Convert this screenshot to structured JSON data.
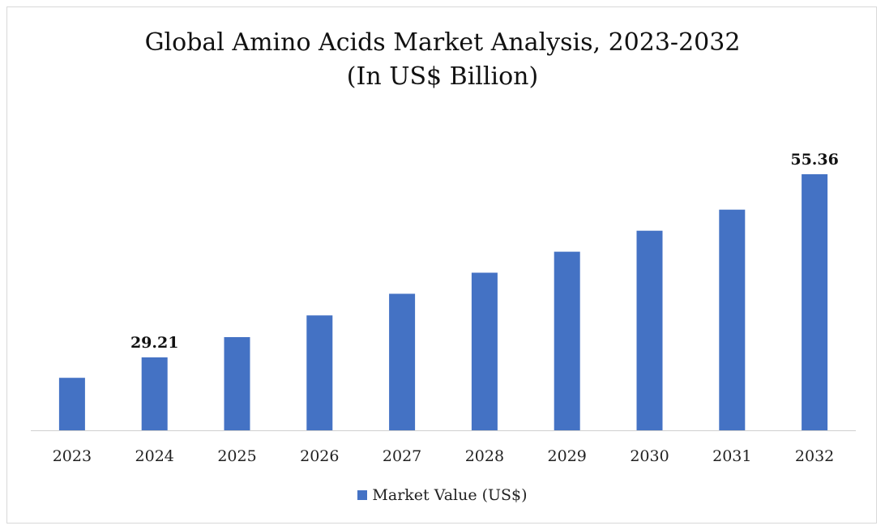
{
  "chart_data": {
    "type": "bar",
    "title": "Global Amino Acids Market Analysis, 2023-2032",
    "subtitle": "(In US$ Billion)",
    "categories": [
      "2023",
      "2024",
      "2025",
      "2026",
      "2027",
      "2028",
      "2029",
      "2030",
      "2031",
      "2032"
    ],
    "series": [
      {
        "name": "Market Value (US$)",
        "values": [
          26.3,
          29.21,
          32.1,
          35.2,
          38.3,
          41.3,
          44.3,
          47.3,
          50.3,
          55.36
        ],
        "color": "#4472c4"
      }
    ],
    "data_labels": [
      {
        "category": "2024",
        "text": "29.21"
      },
      {
        "category": "2032",
        "text": "55.36"
      }
    ],
    "ylim": [
      18.8,
      55.36
    ],
    "y_axis_visible": false,
    "grid": false,
    "legend_position": "bottom"
  }
}
